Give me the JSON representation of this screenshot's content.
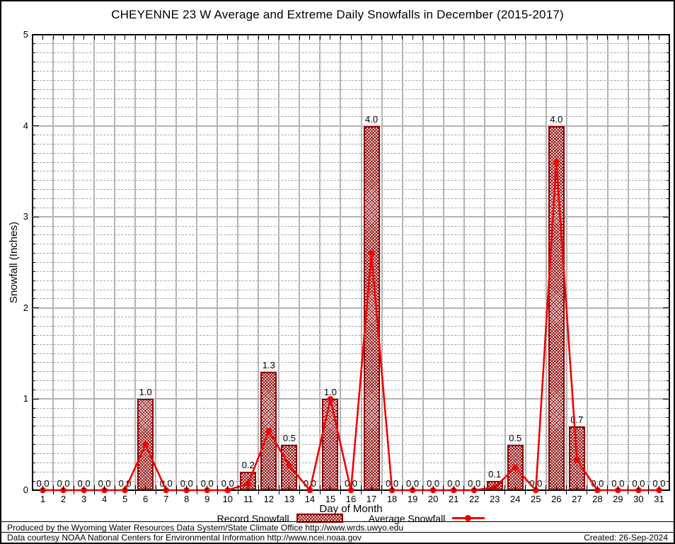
{
  "chart_data": {
    "type": "bar",
    "title": "CHEYENNE 23 W Average and Extreme Daily Snowfalls in December (2015-2017)",
    "xlabel": "Day of Month",
    "ylabel": "Snowfall (Inches)",
    "ylim": [
      0,
      5
    ],
    "yticks": [
      0,
      1,
      2,
      3,
      4,
      5
    ],
    "y_minor_step": 0.1,
    "grid": true,
    "legend_position": "below",
    "categories": [
      1,
      2,
      3,
      4,
      5,
      6,
      7,
      8,
      9,
      10,
      11,
      12,
      13,
      14,
      15,
      16,
      17,
      18,
      19,
      20,
      21,
      22,
      23,
      24,
      25,
      26,
      27,
      28,
      29,
      30,
      31
    ],
    "series": [
      {
        "name": "Record Snowfall",
        "type": "bar",
        "color": "#950000",
        "hatch_color": "#8b0000",
        "values": [
          0.0,
          0.0,
          0.0,
          0.0,
          0.0,
          1.0,
          0.0,
          0.0,
          0.0,
          0.0,
          0.2,
          1.3,
          0.5,
          0.0,
          1.0,
          0.0,
          4.0,
          0.0,
          0.0,
          0.0,
          0.0,
          0.0,
          0.1,
          0.5,
          0.0,
          4.0,
          0.7,
          0.0,
          0.0,
          0.0,
          0.0
        ]
      },
      {
        "name": "Average Snowfall",
        "type": "line",
        "color": "#f20000",
        "marker": "circle",
        "values": [
          0.0,
          0.0,
          0.0,
          0.0,
          0.0,
          0.5,
          0.0,
          0.0,
          0.0,
          0.0,
          0.07,
          0.65,
          0.27,
          0.0,
          1.0,
          0.0,
          2.6,
          0.0,
          0.0,
          0.0,
          0.0,
          0.0,
          0.03,
          0.25,
          0.0,
          3.6,
          0.33,
          0.0,
          0.0,
          0.0,
          0.0
        ]
      }
    ],
    "bar_value_label_decimals": 1,
    "colors": {
      "grid_major": "#b4b4b4",
      "grid_minor": "#a6a6a6",
      "frame": "#000000",
      "text": "#000000"
    }
  },
  "footer": {
    "line1": "Produced by the Wyoming Water Resources Data System/State Climate Office http://www.wrds.uwyo.edu",
    "line2": "Data courtesy NOAA National Centers for Environmental Information http://www.ncei.noaa.gov",
    "created": "Created: 26-Sep-2024"
  }
}
